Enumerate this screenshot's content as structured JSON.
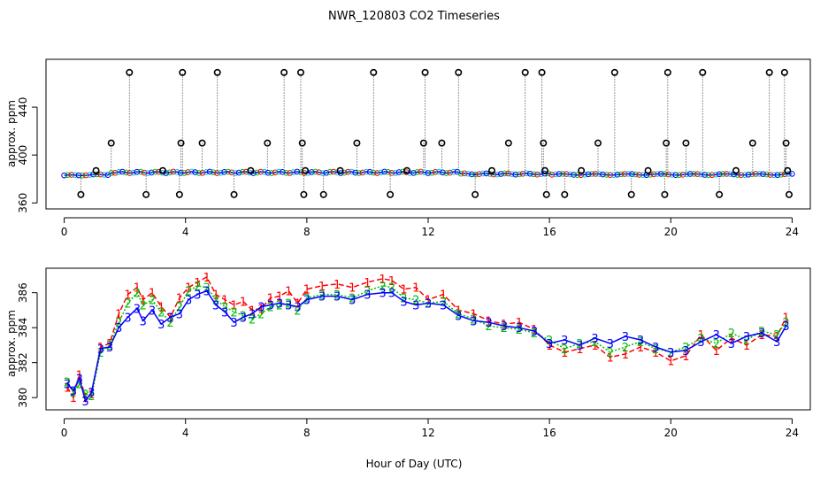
{
  "chart_data": {
    "title": "NWR_120803  CO2 Timeseries",
    "xlabel": "Hour of Day (UTC)",
    "panels": [
      {
        "type": "scatter",
        "name": "top-panel",
        "ylabel": "approx. ppm",
        "xlim": [
          -0.6,
          24.6
        ],
        "ylim": [
          355,
          480
        ],
        "xticks": [
          0,
          4,
          8,
          12,
          16,
          20,
          24
        ],
        "yticks": [
          360,
          400,
          440
        ],
        "baseline": 385,
        "flagged_points": [
          [
            0.55,
            367
          ],
          [
            1.05,
            387
          ],
          [
            1.55,
            410
          ],
          [
            2.15,
            469
          ],
          [
            2.7,
            367
          ],
          [
            3.25,
            387
          ],
          [
            3.8,
            367
          ],
          [
            3.85,
            410
          ],
          [
            3.9,
            469
          ],
          [
            4.55,
            410
          ],
          [
            5.05,
            469
          ],
          [
            5.6,
            367
          ],
          [
            6.15,
            387
          ],
          [
            6.7,
            410
          ],
          [
            7.25,
            469
          ],
          [
            7.8,
            469
          ],
          [
            7.85,
            410
          ],
          [
            7.9,
            367
          ],
          [
            7.95,
            387
          ],
          [
            8.55,
            367
          ],
          [
            9.1,
            387
          ],
          [
            9.65,
            410
          ],
          [
            10.2,
            469
          ],
          [
            10.75,
            367
          ],
          [
            11.3,
            387
          ],
          [
            11.85,
            410
          ],
          [
            11.9,
            469
          ],
          [
            12.45,
            410
          ],
          [
            13.0,
            469
          ],
          [
            13.55,
            367
          ],
          [
            14.1,
            387
          ],
          [
            14.65,
            410
          ],
          [
            15.2,
            469
          ],
          [
            15.75,
            469
          ],
          [
            15.8,
            410
          ],
          [
            15.85,
            387
          ],
          [
            15.9,
            367
          ],
          [
            16.5,
            367
          ],
          [
            17.05,
            387
          ],
          [
            17.6,
            410
          ],
          [
            18.15,
            469
          ],
          [
            18.7,
            367
          ],
          [
            19.25,
            387
          ],
          [
            19.8,
            367
          ],
          [
            19.85,
            410
          ],
          [
            19.9,
            469
          ],
          [
            20.5,
            410
          ],
          [
            21.05,
            469
          ],
          [
            21.6,
            367
          ],
          [
            22.15,
            387
          ],
          [
            22.7,
            410
          ],
          [
            23.25,
            469
          ],
          [
            23.75,
            469
          ],
          [
            23.8,
            410
          ],
          [
            23.85,
            387
          ],
          [
            23.9,
            367
          ]
        ]
      },
      {
        "type": "line",
        "name": "bottom-panel",
        "ylabel": "approx. ppm",
        "xlim": [
          -0.6,
          24.6
        ],
        "ylim": [
          379.3,
          387.4
        ],
        "xticks": [
          0,
          4,
          8,
          12,
          16,
          20,
          24
        ],
        "yticks": [
          380,
          382,
          384,
          386
        ],
        "series": [
          {
            "name": "1",
            "color": "#ff0000",
            "x": [
              0.1,
              0.3,
              0.5,
              0.7,
              0.9,
              1.2,
              1.5,
              1.8,
              2.1,
              2.4,
              2.6,
              2.9,
              3.2,
              3.5,
              3.8,
              4.1,
              4.4,
              4.7,
              5.0,
              5.3,
              5.6,
              5.9,
              6.2,
              6.5,
              6.8,
              7.1,
              7.4,
              7.7,
              8.0,
              8.5,
              9.0,
              9.5,
              10.0,
              10.5,
              10.8,
              11.2,
              11.6,
              12.0,
              12.5,
              13.0,
              13.5,
              14.0,
              14.5,
              15.0,
              15.5,
              16.0,
              16.5,
              17.0,
              17.5,
              18.0,
              18.5,
              19.0,
              19.5,
              20.0,
              20.5,
              21.0,
              21.5,
              22.0,
              22.5,
              23.0,
              23.5,
              23.8
            ],
            "values": [
              380.6,
              380.0,
              381.3,
              380.0,
              380.2,
              382.9,
              383.1,
              384.8,
              385.9,
              386.3,
              385.6,
              386.0,
              385.2,
              384.6,
              385.7,
              386.3,
              386.6,
              386.9,
              385.9,
              385.6,
              385.3,
              385.5,
              385.0,
              385.1,
              385.7,
              385.8,
              386.1,
              385.4,
              386.2,
              386.4,
              386.5,
              386.3,
              386.6,
              386.8,
              386.7,
              386.2,
              386.3,
              385.6,
              385.9,
              385.0,
              384.8,
              384.4,
              384.2,
              384.3,
              383.9,
              383.0,
              382.6,
              382.8,
              383.0,
              382.3,
              382.5,
              382.9,
              382.6,
              382.1,
              382.4,
              383.6,
              382.7,
              383.4,
              383.0,
              383.6,
              383.5,
              384.6
            ]
          },
          {
            "name": "2",
            "color": "#00c000",
            "x": [
              0.1,
              0.3,
              0.5,
              0.7,
              0.9,
              1.2,
              1.5,
              1.8,
              2.1,
              2.4,
              2.6,
              2.9,
              3.2,
              3.5,
              3.8,
              4.1,
              4.4,
              4.7,
              5.0,
              5.3,
              5.6,
              5.9,
              6.2,
              6.5,
              6.8,
              7.1,
              7.4,
              7.7,
              8.0,
              8.5,
              9.0,
              9.5,
              10.0,
              10.5,
              10.8,
              11.2,
              11.6,
              12.0,
              12.5,
              13.0,
              13.5,
              14.0,
              14.5,
              15.0,
              15.5,
              16.0,
              16.5,
              17.0,
              17.5,
              18.0,
              18.5,
              19.0,
              19.5,
              20.0,
              20.5,
              21.0,
              21.5,
              22.0,
              22.5,
              23.0,
              23.5,
              23.8
            ],
            "values": [
              380.9,
              380.3,
              380.8,
              380.2,
              380.1,
              382.6,
              383.0,
              384.3,
              385.4,
              386.0,
              385.3,
              385.6,
              384.9,
              384.3,
              385.2,
              386.1,
              386.4,
              386.3,
              385.6,
              385.2,
              384.9,
              384.7,
              384.5,
              384.8,
              385.2,
              385.3,
              385.4,
              385.0,
              385.7,
              385.9,
              385.9,
              385.7,
              386.1,
              386.4,
              386.3,
              385.7,
              385.6,
              385.4,
              385.5,
              384.8,
              384.5,
              384.1,
              384.0,
              383.9,
              383.7,
              383.3,
              382.8,
              383.1,
              383.2,
              382.6,
              382.9,
              383.2,
              382.8,
              382.6,
              382.9,
              383.4,
              383.1,
              383.7,
              383.3,
              383.8,
              383.6,
              384.3
            ]
          },
          {
            "name": "3",
            "color": "#0000ff",
            "x": [
              0.1,
              0.3,
              0.5,
              0.7,
              0.9,
              1.2,
              1.5,
              1.8,
              2.1,
              2.4,
              2.6,
              2.9,
              3.2,
              3.5,
              3.8,
              4.1,
              4.4,
              4.7,
              5.0,
              5.3,
              5.6,
              5.9,
              6.2,
              6.5,
              6.8,
              7.1,
              7.4,
              7.7,
              8.0,
              8.5,
              9.0,
              9.5,
              10.0,
              10.5,
              10.8,
              11.2,
              11.6,
              12.0,
              12.5,
              13.0,
              13.5,
              14.0,
              14.5,
              15.0,
              15.5,
              16.0,
              16.5,
              17.0,
              17.5,
              18.0,
              18.5,
              19.0,
              19.5,
              20.0,
              20.5,
              21.0,
              21.5,
              22.0,
              22.5,
              23.0,
              23.5,
              23.8
            ],
            "values": [
              380.8,
              380.4,
              381.1,
              379.8,
              380.3,
              382.8,
              382.9,
              384.0,
              384.6,
              385.1,
              384.4,
              385.0,
              384.2,
              384.6,
              384.8,
              385.6,
              385.9,
              386.1,
              385.3,
              384.9,
              384.3,
              384.6,
              384.8,
              385.2,
              385.3,
              385.4,
              385.3,
              385.2,
              385.6,
              385.8,
              385.8,
              385.6,
              385.9,
              386.0,
              386.0,
              385.5,
              385.3,
              385.4,
              385.3,
              384.7,
              384.4,
              384.3,
              384.1,
              384.0,
              383.8,
              383.1,
              383.3,
              383.0,
              383.4,
              383.1,
              383.5,
              383.3,
              382.9,
              382.6,
              382.7,
              383.2,
              383.6,
              383.1,
              383.5,
              383.7,
              383.2,
              384.1
            ]
          }
        ]
      }
    ]
  }
}
